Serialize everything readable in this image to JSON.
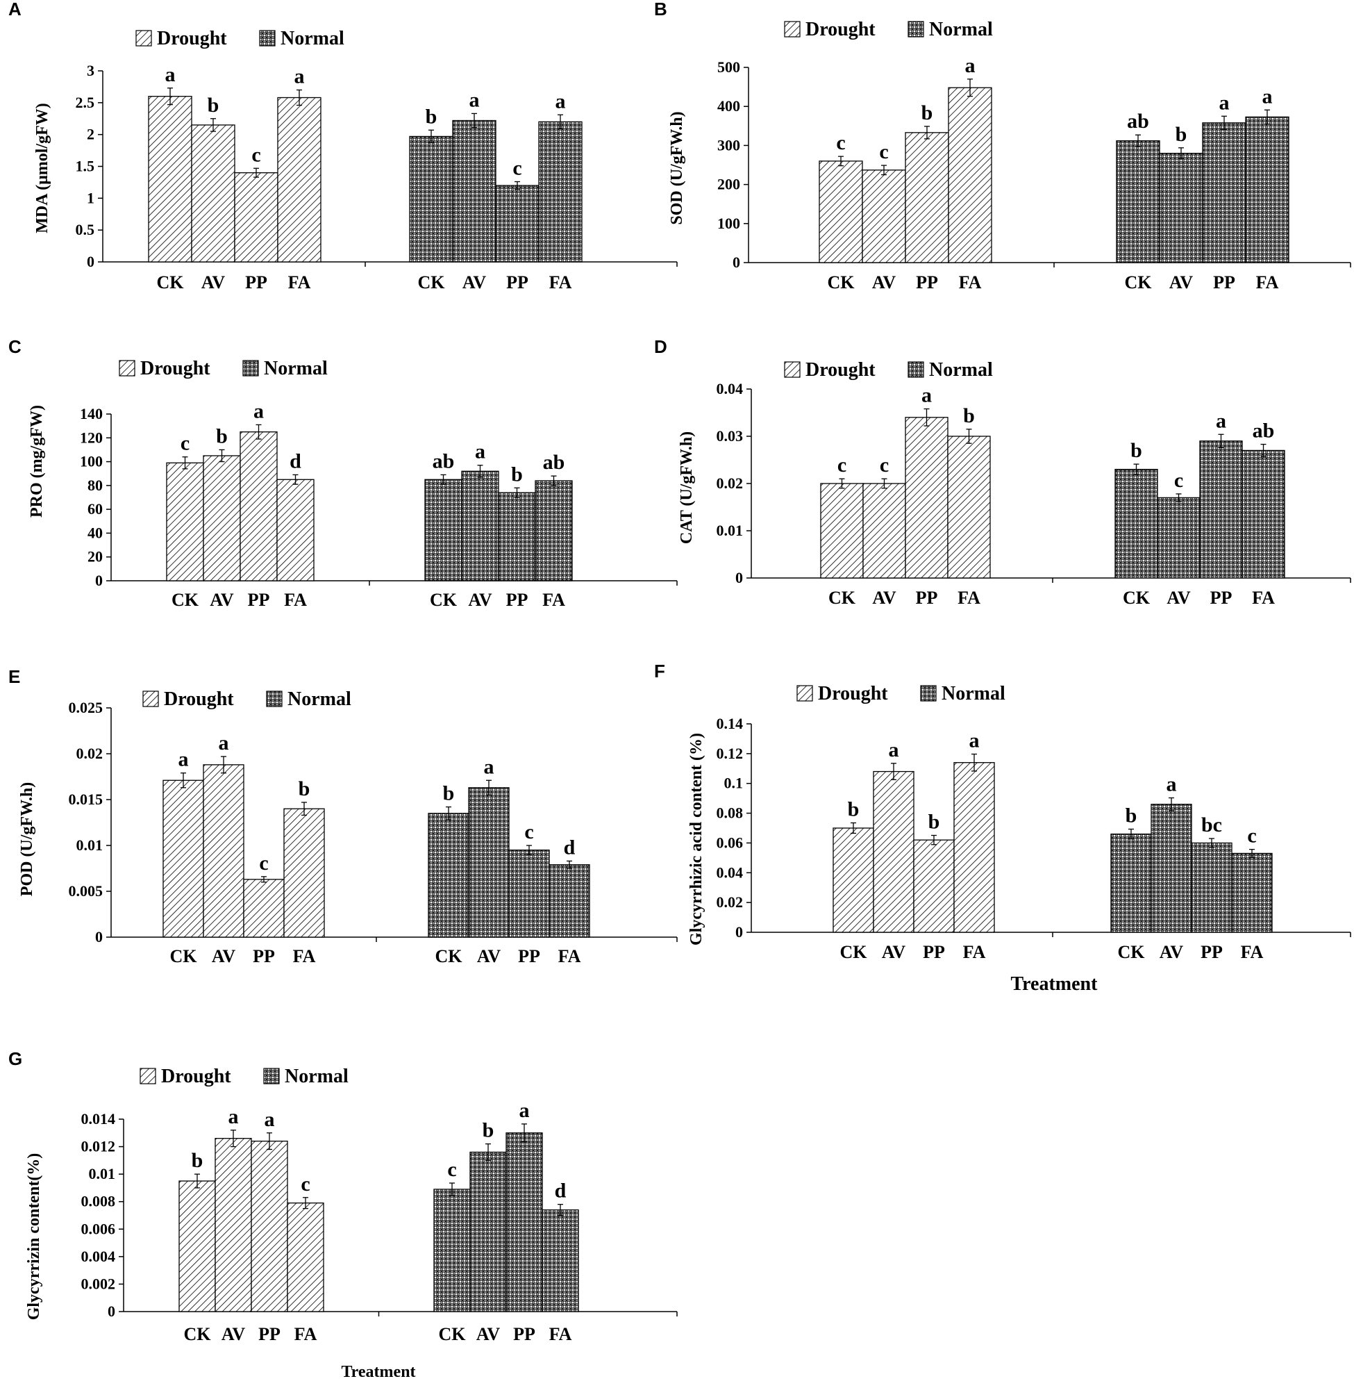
{
  "figure": {
    "legend": {
      "drought": "Drought",
      "normal": "Normal"
    },
    "groups": [
      "Drought",
      "Normal"
    ],
    "colors": {
      "bar_fill": "#ffffff",
      "bar_hatch": "#000000",
      "axis": "#000000",
      "text": "#000000"
    }
  },
  "chart_data": [
    {
      "type": "bar",
      "panel": "A",
      "ylabel": "MDA (μmol/gFW)",
      "xlabel": "",
      "ylim": [
        0,
        3
      ],
      "ticks": [
        0,
        0.5,
        1,
        1.5,
        2,
        2.5,
        3
      ],
      "tick_labels": [
        "0",
        "0.5",
        "1",
        "1.5",
        "2",
        "2.5",
        "3"
      ],
      "categories": [
        "CK",
        "AV",
        "PP",
        "FA"
      ],
      "series": [
        {
          "name": "Drought",
          "values": [
            2.6,
            2.15,
            1.4,
            2.58
          ],
          "errors": [
            0.13,
            0.1,
            0.07,
            0.12
          ],
          "letters": [
            "a",
            "b",
            "c",
            "a"
          ]
        },
        {
          "name": "Normal",
          "values": [
            1.97,
            2.22,
            1.2,
            2.2
          ],
          "errors": [
            0.1,
            0.11,
            0.06,
            0.11
          ],
          "letters": [
            "b",
            "a",
            "c",
            "a"
          ]
        }
      ]
    },
    {
      "type": "bar",
      "panel": "B",
      "ylabel": "SOD (U/gFW.h)",
      "xlabel": "",
      "ylim": [
        0,
        500
      ],
      "ticks": [
        0,
        100,
        200,
        300,
        400,
        500
      ],
      "tick_labels": [
        "0",
        "100",
        "200",
        "300",
        "400",
        "500"
      ],
      "categories": [
        "CK",
        "AV",
        "PP",
        "FA"
      ],
      "series": [
        {
          "name": "Drought",
          "values": [
            260,
            237,
            333,
            448
          ],
          "errors": [
            12,
            12,
            16,
            22
          ],
          "letters": [
            "c",
            "c",
            "b",
            "a"
          ]
        },
        {
          "name": "Normal",
          "values": [
            312,
            280,
            358,
            373
          ],
          "errors": [
            15,
            14,
            17,
            18
          ],
          "letters": [
            "ab",
            "b",
            "a",
            "a"
          ]
        }
      ]
    },
    {
      "type": "bar",
      "panel": "C",
      "ylabel": "PRO (mg/gFW)",
      "xlabel": "",
      "ylim": [
        0,
        140
      ],
      "ticks": [
        0,
        20,
        40,
        60,
        80,
        100,
        120,
        140
      ],
      "tick_labels": [
        "0",
        "20",
        "40",
        "60",
        "80",
        "100",
        "120",
        "140"
      ],
      "categories": [
        "CK",
        "AV",
        "PP",
        "FA"
      ],
      "series": [
        {
          "name": "Drought",
          "values": [
            99,
            105,
            125,
            85
          ],
          "errors": [
            5,
            5,
            6,
            4
          ],
          "letters": [
            "c",
            "b",
            "a",
            "d"
          ]
        },
        {
          "name": "Normal",
          "values": [
            85,
            92,
            74,
            84
          ],
          "errors": [
            4,
            5,
            4,
            4
          ],
          "letters": [
            "ab",
            "a",
            "b",
            "ab"
          ]
        }
      ]
    },
    {
      "type": "bar",
      "panel": "D",
      "ylabel": "CAT (U/gFW.h)",
      "xlabel": "",
      "ylim": [
        0,
        0.04
      ],
      "ticks": [
        0,
        0.01,
        0.02,
        0.03,
        0.04
      ],
      "tick_labels": [
        "0",
        "0.01",
        "0.02",
        "0.03",
        "0.04"
      ],
      "categories": [
        "CK",
        "AV",
        "PP",
        "FA"
      ],
      "series": [
        {
          "name": "Drought",
          "values": [
            0.02,
            0.02,
            0.034,
            0.03
          ],
          "errors": [
            0.001,
            0.001,
            0.0018,
            0.0015
          ],
          "letters": [
            "c",
            "c",
            "a",
            "b"
          ]
        },
        {
          "name": "Normal",
          "values": [
            0.023,
            0.017,
            0.029,
            0.027
          ],
          "errors": [
            0.0011,
            0.0008,
            0.0014,
            0.0013
          ],
          "letters": [
            "b",
            "c",
            "a",
            "ab"
          ]
        }
      ]
    },
    {
      "type": "bar",
      "panel": "E",
      "ylabel": "POD (U/gFW.h)",
      "xlabel": "",
      "ylim": [
        0,
        0.025
      ],
      "ticks": [
        0,
        0.005,
        0.01,
        0.015,
        0.02,
        0.025
      ],
      "tick_labels": [
        "0",
        "0.005",
        "0.01",
        "0.015",
        "0.02",
        "0.025"
      ],
      "categories": [
        "CK",
        "AV",
        "PP",
        "FA"
      ],
      "series": [
        {
          "name": "Drought",
          "values": [
            0.0171,
            0.0188,
            0.0063,
            0.014
          ],
          "errors": [
            0.0008,
            0.0009,
            0.0003,
            0.0007
          ],
          "letters": [
            "a",
            "a",
            "c",
            "b"
          ]
        },
        {
          "name": "Normal",
          "values": [
            0.0135,
            0.0163,
            0.0095,
            0.0079
          ],
          "errors": [
            0.0007,
            0.0008,
            0.0005,
            0.0004
          ],
          "letters": [
            "b",
            "a",
            "c",
            "d"
          ]
        }
      ]
    },
    {
      "type": "bar",
      "panel": "F",
      "ylabel": "Glycyrrhizic acid content (%)",
      "xlabel": "Treatment",
      "ylim": [
        0,
        0.14
      ],
      "ticks": [
        0,
        0.02,
        0.04,
        0.06,
        0.08,
        0.1,
        0.12,
        0.14
      ],
      "tick_labels": [
        "0",
        "0.02",
        "0.04",
        "0.06",
        "0.08",
        "0.1",
        "0.12",
        "0.14"
      ],
      "categories": [
        "CK",
        "AV",
        "PP",
        "FA"
      ],
      "series": [
        {
          "name": "Drought",
          "values": [
            0.07,
            0.108,
            0.062,
            0.114
          ],
          "errors": [
            0.0035,
            0.0055,
            0.0031,
            0.0057
          ],
          "letters": [
            "b",
            "a",
            "b",
            "a"
          ]
        },
        {
          "name": "Normal",
          "values": [
            0.066,
            0.086,
            0.06,
            0.053
          ],
          "errors": [
            0.0033,
            0.0043,
            0.003,
            0.0027
          ],
          "letters": [
            "b",
            "a",
            "bc",
            "c"
          ]
        }
      ]
    },
    {
      "type": "bar",
      "panel": "G",
      "ylabel": "Glycyrrizin content(%)",
      "xlabel": "Treatment",
      "ylim": [
        0,
        0.014
      ],
      "ticks": [
        0,
        0.002,
        0.004,
        0.006,
        0.008,
        0.01,
        0.012,
        0.014
      ],
      "tick_labels": [
        "0",
        "0.002",
        "0.004",
        "0.006",
        "0.008",
        "0.01",
        "0.012",
        "0.014"
      ],
      "categories": [
        "CK",
        "AV",
        "PP",
        "FA"
      ],
      "series": [
        {
          "name": "Drought",
          "values": [
            0.0095,
            0.0126,
            0.0124,
            0.0079
          ],
          "errors": [
            0.0005,
            0.0006,
            0.0006,
            0.0004
          ],
          "letters": [
            "b",
            "a",
            "a",
            "c"
          ]
        },
        {
          "name": "Normal",
          "values": [
            0.0089,
            0.0116,
            0.013,
            0.0074
          ],
          "errors": [
            0.00045,
            0.0006,
            0.00065,
            0.0004
          ],
          "letters": [
            "c",
            "b",
            "a",
            "d"
          ]
        }
      ]
    }
  ]
}
